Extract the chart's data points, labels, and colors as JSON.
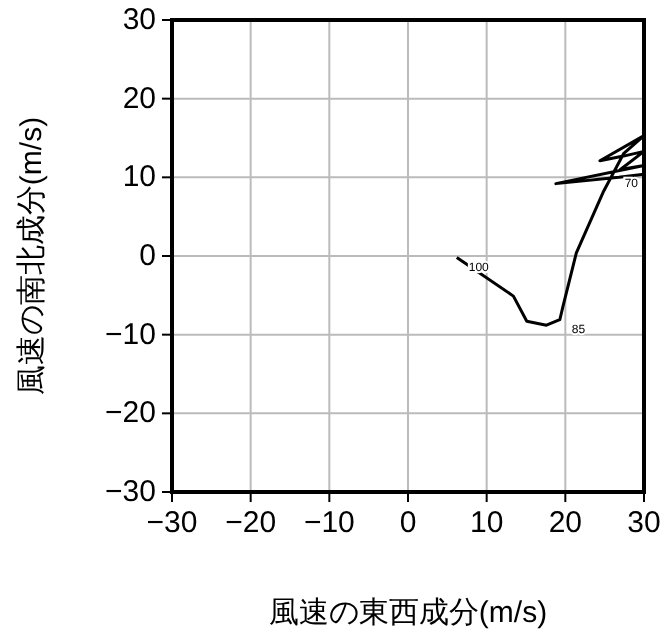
{
  "chart_data": {
    "type": "line",
    "xlabel": "風速の東西成分(m/s)",
    "ylabel": "風速の南北成分(m/s)",
    "series": [
      {
        "color": "#000000",
        "x": [
          6.2,
          13.4,
          15.1,
          17.6,
          19.3,
          19.7,
          21.4,
          24.8,
          27.4,
          30,
          24.4,
          27.4,
          30,
          27,
          30,
          18.8,
          26.8,
          30
        ],
        "values": [
          -0.2,
          -5.1,
          -8.3,
          -8.8,
          -8.1,
          -6.4,
          0.4,
          8.1,
          13,
          15.3,
          12.1,
          12.7,
          13.3,
          11,
          11.5,
          9.2,
          10,
          10.4
        ]
      }
    ],
    "xlim": [
      -30,
      30
    ],
    "xticks": [
      -30,
      -20,
      -10,
      0,
      10,
      20,
      30
    ],
    "ylim": [
      -30,
      30
    ],
    "yticks": [
      -30,
      -20,
      -10,
      0,
      10,
      20,
      30
    ],
    "grid": true,
    "marker": "none",
    "line_style": "solid",
    "annotations": [
      {
        "text": "100",
        "x": 6.2,
        "y": -0.2
      },
      {
        "text": "85",
        "x": 19.3,
        "y": -8.1
      },
      {
        "text": "70",
        "x": 30,
        "y": 10.4
      }
    ]
  }
}
